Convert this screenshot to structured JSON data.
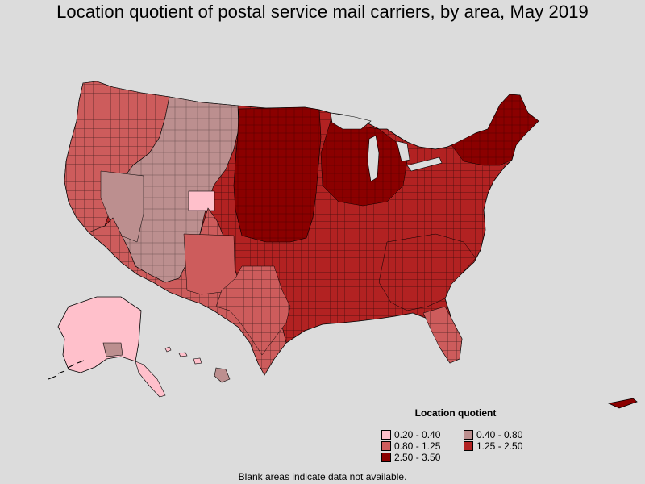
{
  "title": "Location quotient of postal service mail carriers, by area, May 2019",
  "legend": {
    "title": "Location quotient",
    "items": [
      {
        "label": "0.20 - 0.40",
        "color": "#ffc0cb"
      },
      {
        "label": "0.40 - 0.80",
        "color": "#bc8f8f"
      },
      {
        "label": "0.80 - 1.25",
        "color": "#cd5c5c"
      },
      {
        "label": "1.25 - 2.50",
        "color": "#b22222"
      },
      {
        "label": "2.50 - 3.50",
        "color": "#8b0000"
      }
    ]
  },
  "footnote": "Blank areas indicate data not available.",
  "colors": {
    "background": "#dcdcdc",
    "border": "#000000",
    "class_0_20_0_40": "#ffc0cb",
    "class_0_40_0_80": "#bc8f8f",
    "class_0_80_1_25": "#cd5c5c",
    "class_1_25_2_50": "#b22222",
    "class_2_50_3_50": "#8b0000"
  }
}
